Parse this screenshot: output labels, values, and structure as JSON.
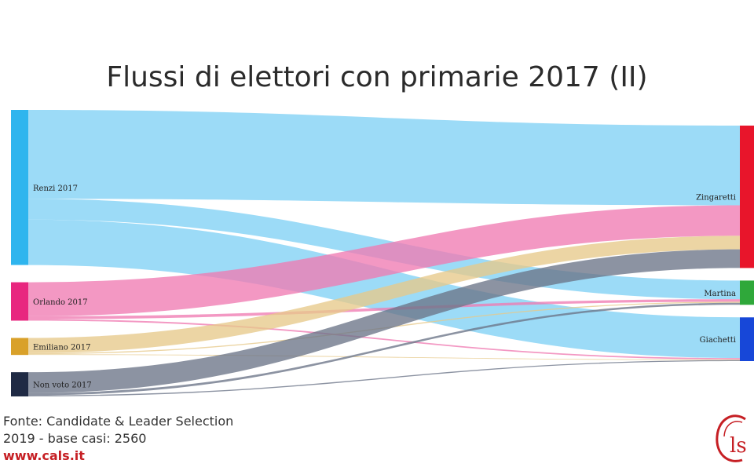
{
  "title": "Flussi di elettori con primarie 2017 (II)",
  "footer": {
    "line1": "Fonte: Candidate & Leader Selection",
    "line2": "2019 - base casi: 2560",
    "url": "www.cals.it"
  },
  "logo": {
    "text": "Cls",
    "color": "#c61f24"
  },
  "chart_data": {
    "type": "sankey",
    "sources": [
      {
        "name": "Renzi 2017",
        "color": "#2fb5ee"
      },
      {
        "name": "Orlando 2017",
        "color": "#e8277f"
      },
      {
        "name": "Emiliano 2017",
        "color": "#d9a12a"
      },
      {
        "name": "Non voto 2017",
        "color": "#1f2a44"
      }
    ],
    "targets": [
      {
        "name": "Zingaretti",
        "color": "#e8152b"
      },
      {
        "name": "Martina",
        "color": "#2fa83a"
      },
      {
        "name": "Giachetti",
        "color": "#1747d8"
      }
    ],
    "link_colors": {
      "Renzi 2017": "#80d1f5",
      "Orlando 2017": "#f07bb2",
      "Emiliano 2017": "#e7c98a",
      "Non voto 2017": "#6b7588"
    },
    "flows": [
      {
        "source": "Renzi 2017",
        "target": "Zingaretti",
        "value": 47
      },
      {
        "source": "Renzi 2017",
        "target": "Martina",
        "value": 11
      },
      {
        "source": "Renzi 2017",
        "target": "Giachetti",
        "value": 24
      },
      {
        "source": "Orlando 2017",
        "target": "Zingaretti",
        "value": 18
      },
      {
        "source": "Orlando 2017",
        "target": "Martina",
        "value": 1.5
      },
      {
        "source": "Orlando 2017",
        "target": "Giachetti",
        "value": 0.8
      },
      {
        "source": "Emiliano 2017",
        "target": "Zingaretti",
        "value": 8
      },
      {
        "source": "Emiliano 2017",
        "target": "Martina",
        "value": 0.6
      },
      {
        "source": "Emiliano 2017",
        "target": "Giachetti",
        "value": 0.4
      },
      {
        "source": "Non voto 2017",
        "target": "Zingaretti",
        "value": 11
      },
      {
        "source": "Non voto 2017",
        "target": "Martina",
        "value": 1.2
      },
      {
        "source": "Non voto 2017",
        "target": "Giachetti",
        "value": 0.6
      }
    ]
  }
}
